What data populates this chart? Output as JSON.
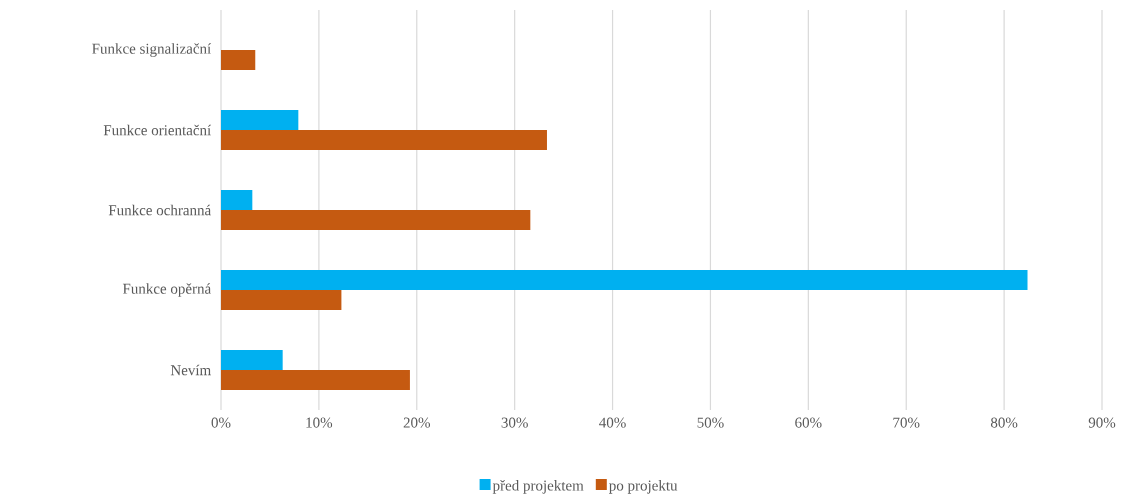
{
  "chart_data": {
    "type": "bar",
    "orientation": "horizontal",
    "categories": [
      "Funkce signalizační",
      "Funkce orientační",
      "Funkce ochranná",
      "Funkce opěrná",
      "Nevím"
    ],
    "series": [
      {
        "name": "před projektem",
        "color": "#00b0f0",
        "values": [
          0,
          7.9,
          3.2,
          82.4,
          6.3
        ]
      },
      {
        "name": "po projektu",
        "color": "#c55a11",
        "values": [
          3.5,
          33.3,
          31.6,
          12.3,
          19.3
        ]
      }
    ],
    "xlim": [
      0,
      90
    ],
    "xticks": [
      {
        "value": 0,
        "label": "0%"
      },
      {
        "value": 10,
        "label": "10%"
      },
      {
        "value": 20,
        "label": "20%"
      },
      {
        "value": 30,
        "label": "30%"
      },
      {
        "value": 40,
        "label": "40%"
      },
      {
        "value": 50,
        "label": "50%"
      },
      {
        "value": 60,
        "label": "60%"
      },
      {
        "value": 70,
        "label": "70%"
      },
      {
        "value": 80,
        "label": "80%"
      },
      {
        "value": 90,
        "label": "90%"
      }
    ],
    "grid": "x",
    "legend": "bottom"
  }
}
